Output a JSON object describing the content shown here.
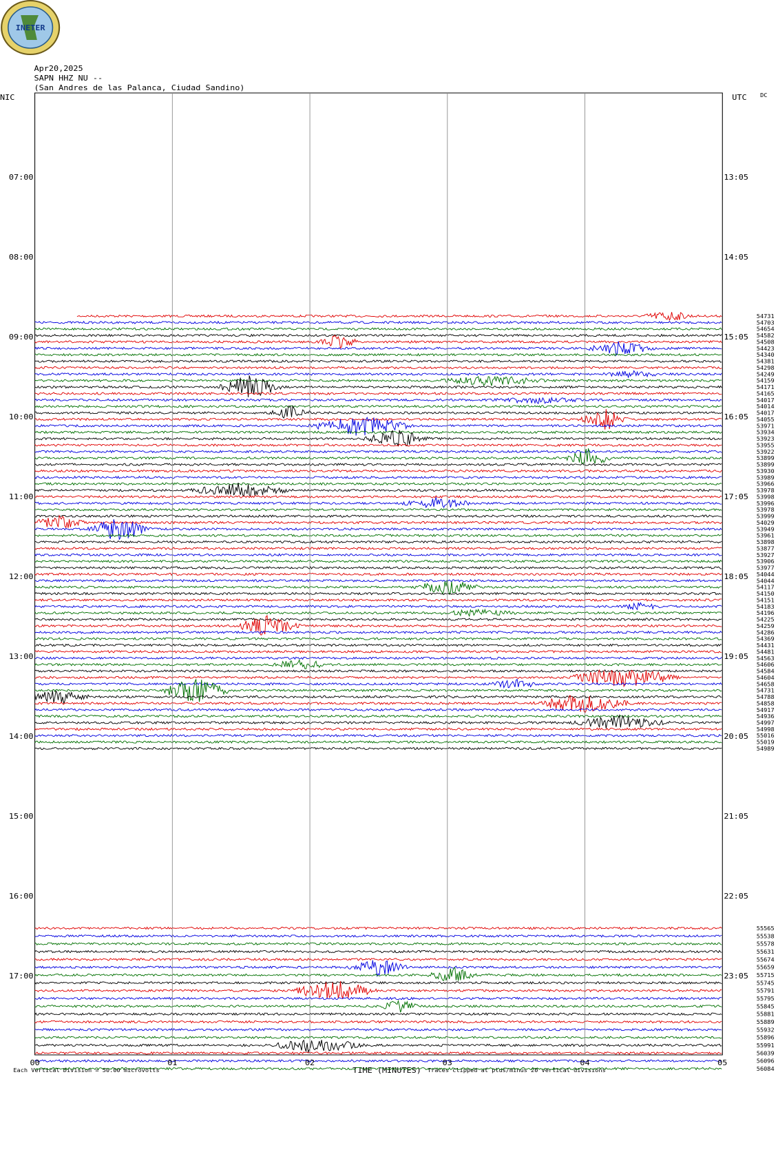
{
  "header": {
    "logo_text": "INETER",
    "date": "Apr20,2025",
    "station": "SAPN HHZ NU --",
    "location": "(San Andres de las Palanca, Ciudad Sandino)",
    "left_zone": "NIC",
    "right_zone": "UTC",
    "dc": "DC"
  },
  "left_hours": [
    "07:00",
    "08:00",
    "09:00",
    "10:00",
    "11:00",
    "12:00",
    "13:00",
    "14:00",
    "15:00",
    "16:00",
    "17:00"
  ],
  "right_hours": [
    "13:05",
    "14:05",
    "15:05",
    "16:05",
    "17:05",
    "18:05",
    "19:05",
    "20:05",
    "21:05",
    "22:05",
    "23:05"
  ],
  "x_ticks": [
    "00",
    "01",
    "02",
    "03",
    "04",
    "05"
  ],
  "x_axis_label": "TIME (MINUTES)",
  "footer": {
    "scale_note": "Each Vertical Division =    50.00 microvolts",
    "clip_note": "Traces clipped at plus/minus 20 vertical divisions"
  },
  "trace_labels_1": [
    "54731",
    "54703",
    "54654",
    "54582",
    "54508",
    "54423",
    "54340",
    "54381",
    "54298",
    "54249",
    "54159",
    "54171",
    "54165",
    "54017",
    "54014",
    "54017",
    "54055",
    "53971",
    "53934",
    "53923",
    "53955",
    "53922",
    "53899",
    "53899",
    "53930",
    "53989",
    "53966",
    "53978",
    "53998",
    "53996",
    "53978",
    "53999",
    "54029",
    "53949",
    "53961",
    "53898",
    "53877",
    "53927",
    "53906",
    "53977",
    "54044",
    "54044",
    "54117",
    "54150",
    "54151",
    "54183",
    "54196",
    "54225",
    "54259",
    "54286",
    "54369",
    "54431",
    "54481",
    "54563",
    "54606",
    "54584",
    "54604",
    "54658",
    "54731",
    "54788",
    "54858",
    "54917",
    "54936",
    "54997",
    "54998",
    "55016",
    "55019",
    "54989"
  ],
  "trace_labels_2": [
    "55565",
    "55538",
    "55578",
    "55631",
    "55674",
    "55659",
    "55715",
    "55745",
    "55791",
    "55795",
    "55845",
    "55881",
    "55889",
    "55932",
    "55896",
    "55991",
    "56039",
    "56096",
    "56084"
  ]
}
